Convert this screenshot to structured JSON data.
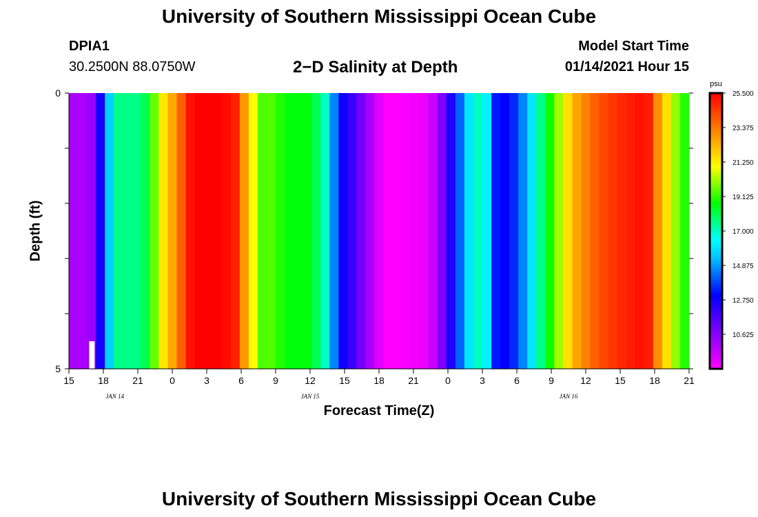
{
  "header": {
    "title": "University of Southern Mississippi Ocean Cube",
    "station_id": "DPIA1",
    "station_coords": "30.2500N 88.0750W",
    "chart_title": "2−D Salinity at Depth",
    "model_start_label": "Model Start Time",
    "model_start_value": "01/14/2021 Hour 15"
  },
  "footer": {
    "title": "University of Southern Mississippi Ocean Cube"
  },
  "chart_data": {
    "type": "heatmap",
    "title": "2−D Salinity at Depth",
    "xlabel": "Forecast Time(Z)",
    "ylabel": "Depth (ft)",
    "x_start_hour": 0,
    "x_end_hour": 54,
    "x_step_hours": 1,
    "xlim": [
      0,
      54
    ],
    "ylim": [
      0,
      5
    ],
    "y_ticks": [
      0,
      1,
      2,
      3,
      4,
      5
    ],
    "y_tick_labels": [
      "0",
      "",
      "",
      "",
      "",
      "5"
    ],
    "x_tick_labels": [
      "15",
      "18",
      "21",
      "0",
      "3",
      "6",
      "9",
      "12",
      "15",
      "18",
      "21",
      "0",
      "3",
      "6",
      "9",
      "12",
      "15",
      "18",
      "21"
    ],
    "date_labels": [
      {
        "hour": 4,
        "label": "JAN  14"
      },
      {
        "hour": 21,
        "label": "JAN  15"
      },
      {
        "hour": 43.5,
        "label": "JAN  16"
      }
    ],
    "depth_bins": [
      0,
      0.5,
      1,
      1.5,
      2,
      2.5,
      3,
      3.5,
      4,
      4.5,
      5
    ],
    "salinity_profile": [
      10.0,
      10.0,
      10.3,
      12.6,
      15.6,
      17.5,
      17.5,
      17.5,
      18.0,
      19.6,
      21.4,
      22.5,
      23.8,
      25.2,
      25.5,
      25.5,
      25.5,
      25.3,
      24.9,
      22.8,
      21.0,
      19.4,
      19.4,
      19.0,
      18.6,
      18.6,
      18.6,
      18.0,
      17.0,
      14.6,
      12.8,
      12.0,
      11.0,
      10.0,
      9.0,
      8.5,
      8.5,
      8.6,
      8.7,
      8.9,
      9.5,
      10.8,
      12.5,
      14.2,
      16.0,
      17.0,
      16.2,
      13.3,
      13.0,
      13.5,
      14.6,
      16.0,
      17.5,
      18.8,
      20.1,
      21.5,
      22.6,
      23.2,
      23.8,
      24.2,
      24.5,
      24.8,
      25.0,
      25.2,
      25.0,
      23.0,
      21.5,
      20.0,
      19.0
    ],
    "colorbar": {
      "units": "psu",
      "min": 8.5,
      "max": 25.5,
      "tick_labels": [
        "25.500",
        "23.375",
        "21.250",
        "19.125",
        "17.000",
        "14.875",
        "12.750",
        "10.625"
      ],
      "colors": [
        "#ff00ff",
        "#c000ff",
        "#8000ff",
        "#4000ff",
        "#0000ff",
        "#0060ff",
        "#00c0ff",
        "#00ffff",
        "#00ff80",
        "#00ff00",
        "#80ff00",
        "#ffff00",
        "#ffc000",
        "#ff8000",
        "#ff4000",
        "#ff0000"
      ]
    },
    "marker": {
      "hour": 2,
      "depth_top": 4.5,
      "depth_bottom": 5
    }
  }
}
